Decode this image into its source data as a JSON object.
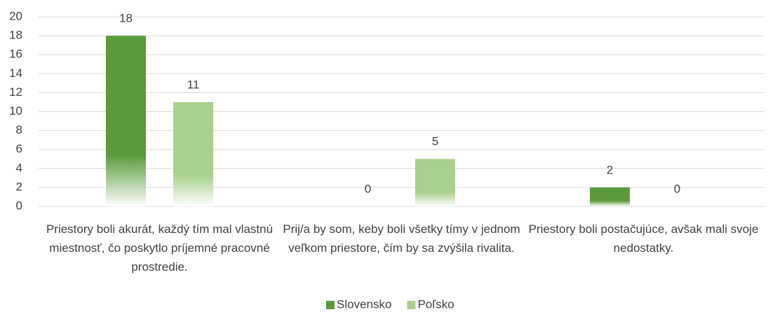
{
  "chart_data": {
    "type": "bar",
    "categories": [
      "Priestory boli akurát, každý tím mal vlastnú miestnosť, čo poskytlo príjemné pracovné prostredie.",
      "Prij/a by som, keby boli všetky tímy v jednom veľkom priestore, čím by sa zvýšila rivalita.",
      "Priestory boli postačujúce, avšak mali svoje nedostatky."
    ],
    "series": [
      {
        "name": "Slovensko",
        "color": "#5b9a3b",
        "values": [
          18,
          0,
          2
        ]
      },
      {
        "name": "Poľsko",
        "color": "#a9d08e",
        "values": [
          11,
          5,
          0
        ]
      }
    ],
    "ylim": [
      0,
      20
    ],
    "yticks": [
      0,
      2,
      4,
      6,
      8,
      10,
      12,
      14,
      16,
      18,
      20
    ],
    "grid": true,
    "legend": "bottom"
  }
}
